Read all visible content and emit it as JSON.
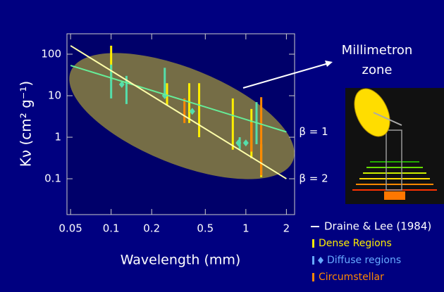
{
  "chart_data": {
    "type": "errorbar",
    "x_label": "Wavelength (mm)",
    "y_label": "Kν (cm² g⁻¹)",
    "annotation": "Millimetron",
    "annotation_line2": "zone",
    "xlim": [
      0.047,
      2.3
    ],
    "ylim": [
      0.0137,
      310
    ],
    "xticks": [
      0.05,
      0.1,
      0.2,
      0.5,
      1,
      2
    ],
    "yticks": [
      0.1,
      1,
      10,
      100
    ],
    "log_x": true,
    "log_y": true,
    "lines_legend": "Draine & Lee (1984)",
    "lines": [
      {
        "name": "β = 1",
        "color": "#66ee99",
        "x": [
          0.05,
          2
        ],
        "values": [
          53.5,
          1.34
        ]
      },
      {
        "name": "β = 2",
        "color": "#ffffaa",
        "x": [
          0.05,
          2
        ],
        "values": [
          160,
          0.1
        ]
      }
    ],
    "series": [
      {
        "name": "Dense Regions",
        "color": "#ffee00",
        "x": [
          0.1,
          0.26,
          0.38,
          0.45,
          0.8,
          1.1,
          1.3
        ],
        "low": [
          22.7,
          5.8,
          2.2,
          1,
          0.5,
          0.31,
          0.11
        ],
        "high": [
          160,
          20,
          20,
          20,
          8.6,
          4.8,
          0.68
        ]
      },
      {
        "name": "Diffuse regions",
        "color": "#55ddaa",
        "legend_color": "#66aaff",
        "x": [
          0.1,
          0.13,
          0.25,
          0.9,
          1.2
        ],
        "low": [
          8.6,
          6.3,
          10,
          0.5,
          0.68
        ],
        "high": [
          56,
          30,
          47,
          1,
          7
        ],
        "point_x": [
          0.12,
          0.25,
          0.4,
          0.88,
          1.0
        ],
        "points": [
          18.7,
          10,
          4.2,
          0.73,
          0.73
        ]
      },
      {
        "name": "Circumstellar",
        "color": "#ff8800",
        "x": [
          0.35,
          1.1,
          1.3
        ],
        "low": [
          2.2,
          0.45,
          0.12
        ],
        "high": [
          8.6,
          2.3,
          9.2
        ]
      }
    ]
  }
}
